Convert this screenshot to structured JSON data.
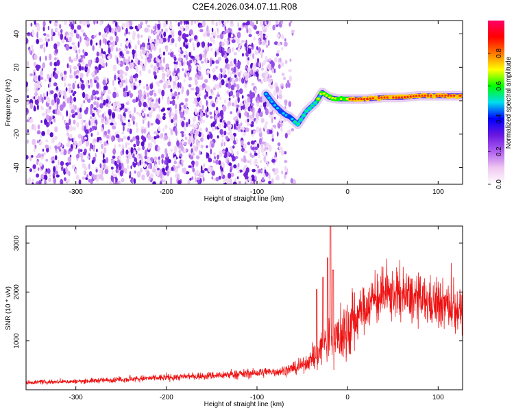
{
  "figure": {
    "title": "C2E4.2026.034.07.11.R08"
  },
  "chart_data": [
    {
      "type": "heatmap",
      "title": "C2E4.2026.034.07.11.R08",
      "xlabel": "Height of straight line (km)",
      "ylabel": "Frequency (Hz)",
      "xlim": [
        -355,
        127
      ],
      "ylim": [
        -50,
        48
      ],
      "xticks": [
        -300,
        -200,
        -100,
        0,
        100
      ],
      "yticks": [
        -40,
        -20,
        0,
        20,
        40
      ],
      "noise_region_x": [
        -355,
        -58
      ],
      "signal_track": {
        "x": [
          -90,
          -80,
          -70,
          -63,
          -55,
          -45,
          -35,
          -28,
          -20,
          -10,
          0,
          20,
          40,
          60,
          80,
          100,
          127
        ],
        "y": [
          4,
          -3,
          -8,
          -10,
          -14,
          -6,
          -1,
          5,
          2,
          1,
          1,
          1,
          2,
          2,
          3,
          3,
          3
        ]
      },
      "colorbar": {
        "label": "Normalized spectral amplitude",
        "range": [
          0,
          1
        ],
        "ticks": [
          "0.0",
          "0.2",
          "0.4",
          "0.6",
          "0.8"
        ],
        "colors": [
          "#ffffff",
          "#f0c8f0",
          "#b060f0",
          "#6a18e0",
          "#0000ff",
          "#00ddee",
          "#00ff00",
          "#ffff00",
          "#ff7700",
          "#ff0000",
          "#ff0066"
        ]
      }
    },
    {
      "type": "line",
      "xlabel": "Height of straight line (km)",
      "ylabel": "SNR (10 * v/v)",
      "xlim": [
        -355,
        127
      ],
      "ylim": [
        0,
        3350
      ],
      "xticks": [
        -300,
        -200,
        -100,
        0,
        100
      ],
      "yticks": [
        1000,
        2000,
        3000
      ],
      "color": "#ee1111",
      "envelope": {
        "x": [
          -355,
          -300,
          -250,
          -200,
          -150,
          -100,
          -75,
          -55,
          -45,
          -35,
          -28,
          -20,
          -12,
          -5,
          5,
          15,
          25,
          40,
          55,
          70,
          85,
          100,
          115,
          127
        ],
        "y": [
          150,
          170,
          210,
          250,
          290,
          340,
          380,
          450,
          550,
          700,
          900,
          1000,
          1050,
          1150,
          1350,
          1600,
          1800,
          1930,
          1950,
          1880,
          1800,
          1760,
          1700,
          1620
        ]
      },
      "spikes": [
        {
          "x": -34,
          "y": 2050
        },
        {
          "x": -27,
          "y": 2300
        },
        {
          "x": -22,
          "y": 2700
        },
        {
          "x": -19,
          "y": 3350
        },
        {
          "x": -16,
          "y": 2450
        }
      ]
    }
  ]
}
